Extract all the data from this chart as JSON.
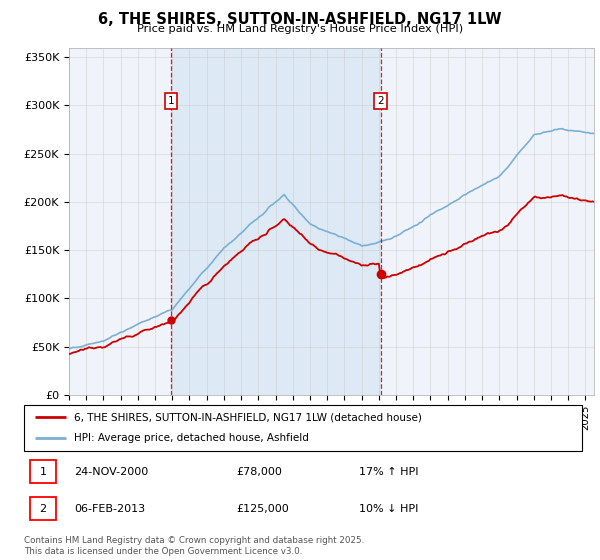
{
  "title": "6, THE SHIRES, SUTTON-IN-ASHFIELD, NG17 1LW",
  "subtitle": "Price paid vs. HM Land Registry's House Price Index (HPI)",
  "ylabel_ticks": [
    "£0",
    "£50K",
    "£100K",
    "£150K",
    "£200K",
    "£250K",
    "£300K",
    "£350K"
  ],
  "ylim": [
    0,
    360000
  ],
  "xlim_start": 1995.0,
  "xlim_end": 2025.5,
  "sale1_date": 2000.92,
  "sale1_price": 78000,
  "sale2_date": 2013.1,
  "sale2_price": 125000,
  "legend_line1": "6, THE SHIRES, SUTTON-IN-ASHFIELD, NG17 1LW (detached house)",
  "legend_line2": "HPI: Average price, detached house, Ashfield",
  "hpi_color": "#7bafd4",
  "hpi_fill_color": "#ddeaf5",
  "price_color": "#cc0000",
  "bg_color": "#f0f4fa",
  "plot_bg": "#ffffff",
  "grid_color": "#cccccc",
  "footnote": "Contains HM Land Registry data © Crown copyright and database right 2025.\nThis data is licensed under the Open Government Licence v3.0."
}
